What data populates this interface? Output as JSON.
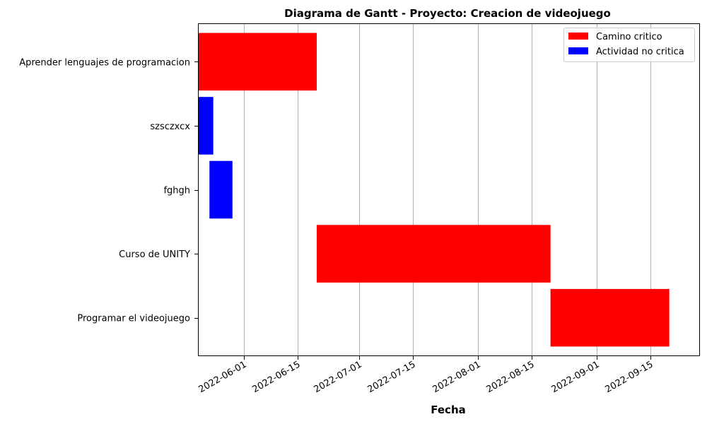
{
  "chart_data": {
    "type": "gantt",
    "title": "Diagrama de Gantt - Proyecto: Creacion de videojuego",
    "xlabel": "Fecha",
    "ylabel": "",
    "xlim": [
      "2022-05-20",
      "2022-09-28"
    ],
    "grid": "x",
    "x_ticks": [
      "2022-06-01",
      "2022-06-15",
      "2022-07-01",
      "2022-07-15",
      "2022-08-01",
      "2022-08-15",
      "2022-09-01",
      "2022-09-15"
    ],
    "legend": {
      "placement": "top-right",
      "entries": [
        {
          "label": "Camino critico",
          "color": "#ff0000"
        },
        {
          "label": "Actividad no critica",
          "color": "#0000ff"
        }
      ]
    },
    "tasks": [
      {
        "name": "Aprender lenguajes de programacion",
        "start": "2022-05-20",
        "end": "2022-06-20",
        "critical": true
      },
      {
        "name": "szsczxcx",
        "start": "2022-05-20",
        "end": "2022-05-24",
        "critical": false
      },
      {
        "name": "fghgh",
        "start": "2022-05-23",
        "end": "2022-05-29",
        "critical": false
      },
      {
        "name": "Curso de UNITY",
        "start": "2022-06-20",
        "end": "2022-08-20",
        "critical": true
      },
      {
        "name": "Programar el videojuego",
        "start": "2022-08-20",
        "end": "2022-09-20",
        "critical": true
      }
    ],
    "colors": {
      "critical": "#ff0000",
      "noncritical": "#0000ff",
      "grid": "#b0b0b0",
      "axis": "#000000"
    }
  }
}
